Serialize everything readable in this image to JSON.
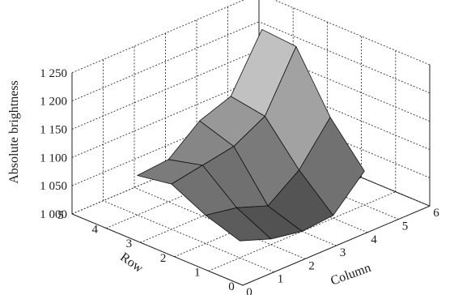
{
  "chart_data": {
    "type": "surface",
    "title": "",
    "zlabel": "Absolute brightness",
    "xlabel": "Column",
    "ylabel": "Row",
    "x_ticks": [
      "0",
      "1",
      "2",
      "3",
      "4",
      "5",
      "6"
    ],
    "y_ticks": [
      "0",
      "1",
      "2",
      "3",
      "4",
      "5"
    ],
    "z_ticks": [
      "1 000",
      "1 050",
      "1 100",
      "1 150",
      "1 200",
      "1 250"
    ],
    "xlim": [
      0,
      6
    ],
    "ylim": [
      0,
      5
    ],
    "zlim": [
      1000,
      1250
    ],
    "grid": true,
    "columns": [
      1,
      2,
      3,
      4,
      5
    ],
    "rows": [
      1,
      2,
      3,
      4
    ],
    "values": [
      [
        1030,
        1010,
        1000,
        1005,
        1060
      ],
      [
        1050,
        1040,
        1020,
        1060,
        1130
      ],
      [
        1080,
        1090,
        1100,
        1130,
        1230
      ],
      [
        1070,
        1075,
        1120,
        1140,
        1235
      ]
    ]
  }
}
